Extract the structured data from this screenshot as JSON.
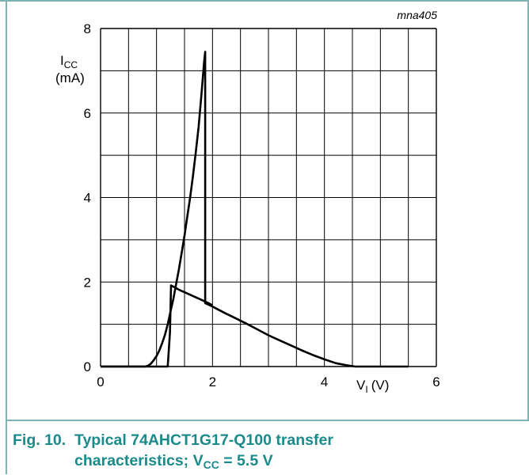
{
  "chart_data": {
    "type": "line",
    "figure_id": "mna405",
    "ylabel_main": "I",
    "ylabel_sub": "CC",
    "ylabel_unit": "(mA)",
    "xlabel_main": "V",
    "xlabel_sub": "I",
    "xlabel_unit": "(V)",
    "xlim": [
      0,
      6
    ],
    "ylim": [
      0,
      8
    ],
    "x_ticks": [
      "0",
      "2",
      "4",
      "6"
    ],
    "y_ticks": [
      "0",
      "2",
      "4",
      "6",
      "8"
    ],
    "grid": true,
    "series": [
      {
        "x": [
          0,
          0.8,
          0.85,
          0.9,
          0.95,
          1.0,
          1.05,
          1.1,
          1.15,
          1.2,
          1.25,
          1.3,
          1.35,
          1.4,
          1.45,
          1.5,
          1.55,
          1.6,
          1.65,
          1.7,
          1.75,
          1.8,
          1.85,
          1.87,
          1.87,
          1.87,
          1.9,
          2.0,
          2.2,
          2.4,
          2.6,
          2.8,
          3.0,
          3.2,
          3.4,
          3.6,
          3.8,
          4.0,
          4.2,
          4.4,
          4.55,
          5.0,
          5.5
        ],
        "y": [
          0,
          0,
          0.02,
          0.07,
          0.15,
          0.25,
          0.38,
          0.55,
          0.75,
          1.0,
          1.3,
          1.6,
          1.95,
          2.3,
          2.7,
          3.1,
          3.55,
          4.0,
          4.5,
          5.05,
          5.65,
          6.4,
          7.2,
          7.45,
          1.5,
          1.5,
          1.48,
          1.42,
          1.28,
          1.15,
          1.02,
          0.88,
          0.74,
          0.62,
          0.5,
          0.38,
          0.27,
          0.17,
          0.08,
          0.03,
          0,
          0,
          0
        ]
      },
      {
        "x": [
          0,
          1.2,
          1.24,
          1.26,
          1.26,
          1.4,
          1.6,
          1.8,
          1.9,
          2.0
        ],
        "y": [
          0,
          0,
          0.8,
          1.92,
          1.92,
          1.82,
          1.7,
          1.58,
          1.52,
          1.45
        ]
      }
    ]
  },
  "caption": {
    "number": "Fig. 10.",
    "line1": "Typical 74AHCT1G17-Q100 transfer",
    "line2_prefix": "characteristics; V",
    "line2_sub": "CC",
    "line2_suffix": " = 5.5 V"
  }
}
